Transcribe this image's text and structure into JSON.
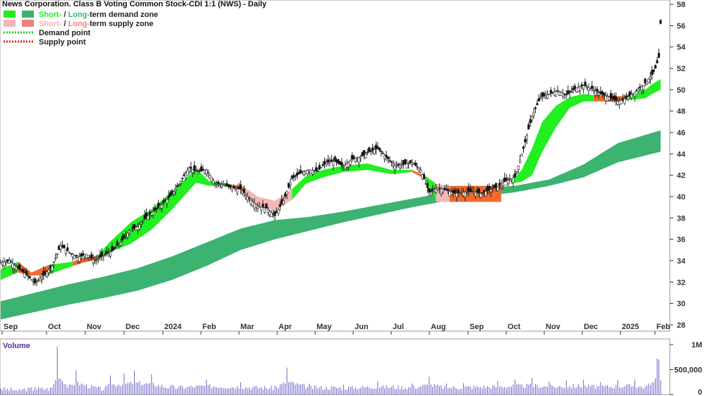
{
  "chart_data": {
    "type": "candlestick",
    "title": "News Corporation. Class B Voting Common Stock-CDI 1:1 (NWS) - Daily",
    "legend": [
      {
        "short_label": "Short-",
        "sep": " / ",
        "long_label": "Long-",
        "rest": "term demand zone",
        "short_color": "#22ee22",
        "long_color": "#3cb371"
      },
      {
        "short_label": "Short-",
        "sep": " / ",
        "long_label": "Long-",
        "rest": "term supply zone",
        "short_color": "#f4b6b6",
        "long_color": "#f07e7e"
      },
      {
        "label": "Demand point",
        "color": "#22cc22"
      },
      {
        "label": "Supply point",
        "color": "#e22222"
      }
    ],
    "legend_position": "top-left",
    "price_axis": {
      "ticks": [
        "58",
        "56",
        "54",
        "52",
        "50",
        "48",
        "46",
        "44",
        "42",
        "40",
        "38",
        "36",
        "34",
        "32",
        "30",
        "28"
      ],
      "ylim": [
        27.4,
        58.4
      ],
      "position": "right"
    },
    "x_ticks": [
      "Sep",
      "Oct",
      "Nov",
      "Dec",
      "2024",
      "Feb",
      "Mar",
      "Apr",
      "May",
      "Jun",
      "Jul",
      "Aug",
      "Sep",
      "Oct",
      "Nov",
      "Dec",
      "2025",
      "Feb"
    ],
    "volume_panel": {
      "label": "Volume",
      "ticks": [
        "1M",
        "500,000",
        "0"
      ],
      "ylim": [
        0,
        1000000
      ]
    },
    "long_term_demand_zone": {
      "x_index": [
        0,
        20,
        40,
        60,
        80,
        100,
        120,
        140,
        160,
        180,
        200,
        220,
        240,
        260,
        280,
        300,
        320,
        340,
        360,
        385
      ],
      "upper": [
        30.2,
        31.0,
        31.8,
        32.5,
        33.3,
        34.4,
        35.7,
        37.0,
        37.8,
        38.1,
        38.6,
        39.2,
        39.8,
        40.4,
        40.8,
        41.0,
        41.6,
        43.0,
        45.0,
        46.2
      ],
      "lower": [
        28.5,
        29.2,
        29.9,
        30.5,
        31.2,
        32.2,
        33.5,
        35.0,
        36.0,
        36.8,
        37.6,
        38.3,
        39.0,
        39.6,
        40.0,
        40.4,
        41.0,
        41.8,
        43.2,
        44.2
      ]
    },
    "short_term_zone": {
      "x_index": [
        0,
        10,
        18,
        28,
        42,
        48,
        56,
        64,
        76,
        88,
        100,
        114,
        122,
        132,
        142,
        150,
        160,
        170,
        178,
        188,
        200,
        214,
        228,
        240,
        248,
        254,
        262,
        268,
        274,
        280,
        286,
        292,
        298,
        304,
        310,
        316,
        324,
        332,
        340,
        346,
        352,
        358,
        364,
        370,
        376,
        380,
        385
      ],
      "upper": [
        33.2,
        33.9,
        32.9,
        33.6,
        33.9,
        34.3,
        34.4,
        35.8,
        37.6,
        38.8,
        40.5,
        42.6,
        41.4,
        41.2,
        40.9,
        40.0,
        39.6,
        40.7,
        41.9,
        42.5,
        42.9,
        43.1,
        42.5,
        42.5,
        41.9,
        41.2,
        41.0,
        40.8,
        40.7,
        40.6,
        40.6,
        41.0,
        41.4,
        42.5,
        44.5,
        47.0,
        48.5,
        49.3,
        49.6,
        49.5,
        49.5,
        49.4,
        49.4,
        49.6,
        50.0,
        50.5,
        51.0
      ],
      "lower": [
        32.2,
        32.9,
        32.6,
        32.7,
        33.5,
        33.8,
        34.1,
        34.8,
        35.6,
        36.9,
        38.8,
        41.3,
        41.0,
        41.0,
        40.5,
        39.0,
        38.7,
        39.7,
        41.2,
        41.8,
        42.3,
        42.5,
        42.1,
        42.3,
        41.6,
        39.5,
        39.5,
        39.5,
        39.6,
        39.9,
        40.5,
        40.8,
        41.2,
        41.4,
        42.0,
        44.2,
        46.5,
        48.3,
        48.9,
        48.9,
        48.9,
        48.9,
        49.0,
        49.1,
        49.2,
        49.6,
        50.0
      ],
      "segments": [
        {
          "from": 0,
          "to": 10,
          "kind": "demand"
        },
        {
          "from": 10,
          "to": 28,
          "kind": "supply_long"
        },
        {
          "from": 28,
          "to": 42,
          "kind": "demand"
        },
        {
          "from": 42,
          "to": 56,
          "kind": "supply_long"
        },
        {
          "from": 56,
          "to": 132,
          "kind": "demand"
        },
        {
          "from": 132,
          "to": 142,
          "kind": "supply_long"
        },
        {
          "from": 142,
          "to": 170,
          "kind": "supply_short"
        },
        {
          "from": 170,
          "to": 240,
          "kind": "demand"
        },
        {
          "from": 240,
          "to": 248,
          "kind": "supply_long"
        },
        {
          "from": 248,
          "to": 254,
          "kind": "demand"
        },
        {
          "from": 254,
          "to": 268,
          "kind": "supply_short"
        },
        {
          "from": 268,
          "to": 292,
          "kind": "supply_long"
        },
        {
          "from": 292,
          "to": 298,
          "kind": "supply_short"
        },
        {
          "from": 298,
          "to": 346,
          "kind": "demand"
        },
        {
          "from": 346,
          "to": 364,
          "kind": "supply_long"
        },
        {
          "from": 364,
          "to": 385,
          "kind": "demand"
        }
      ]
    },
    "price_path": {
      "x_index": [
        0,
        5,
        10,
        15,
        20,
        25,
        30,
        35,
        40,
        45,
        50,
        55,
        60,
        65,
        70,
        75,
        80,
        85,
        90,
        95,
        100,
        105,
        110,
        115,
        120,
        125,
        130,
        135,
        140,
        145,
        150,
        155,
        160,
        165,
        170,
        175,
        180,
        185,
        190,
        195,
        200,
        205,
        210,
        215,
        220,
        225,
        230,
        235,
        240,
        245,
        250,
        255,
        260,
        265,
        270,
        275,
        280,
        285,
        290,
        295,
        300,
        305,
        310,
        315,
        320,
        325,
        330,
        335,
        340,
        345,
        350,
        355,
        360,
        365,
        370,
        375,
        380,
        382,
        384,
        385
      ],
      "close": [
        33.8,
        34.0,
        33.3,
        32.7,
        31.9,
        32.6,
        33.5,
        35.4,
        34.8,
        34.3,
        34.6,
        34.0,
        34.5,
        34.9,
        35.7,
        36.8,
        37.2,
        38.1,
        38.7,
        39.4,
        40.2,
        41.4,
        42.7,
        42.3,
        42.5,
        41.3,
        41.1,
        40.8,
        40.7,
        39.8,
        39.1,
        38.9,
        38.2,
        39.6,
        41.7,
        42.2,
        42.5,
        42.4,
        43.2,
        43.3,
        42.8,
        43.5,
        43.7,
        44.2,
        44.5,
        43.7,
        42.9,
        43.0,
        43.2,
        42.5,
        40.4,
        40.8,
        40.6,
        40.3,
        40.4,
        40.5,
        40.3,
        40.6,
        40.9,
        41.5,
        41.8,
        44.5,
        47.5,
        49.3,
        49.6,
        49.9,
        49.5,
        50.1,
        50.4,
        50.1,
        49.6,
        49.3,
        48.9,
        49.2,
        49.8,
        50.4,
        51.4,
        52.0,
        53.0,
        56.2
      ]
    },
    "volume": {
      "x_index": [
        0,
        10,
        20,
        30,
        33,
        40,
        44,
        60,
        64,
        72,
        78,
        88,
        100,
        120,
        140,
        160,
        167,
        180,
        200,
        220,
        240,
        250,
        260,
        270,
        290,
        300,
        310,
        320,
        330,
        340,
        350,
        360,
        370,
        378,
        383,
        384
      ],
      "values": [
        120000,
        80000,
        150000,
        140000,
        960000,
        200000,
        480000,
        90000,
        380000,
        420000,
        480000,
        410000,
        200000,
        300000,
        250000,
        180000,
        540000,
        220000,
        200000,
        260000,
        220000,
        360000,
        220000,
        230000,
        270000,
        300000,
        330000,
        260000,
        280000,
        300000,
        250000,
        290000,
        300000,
        220000,
        720000,
        700000
      ]
    }
  }
}
